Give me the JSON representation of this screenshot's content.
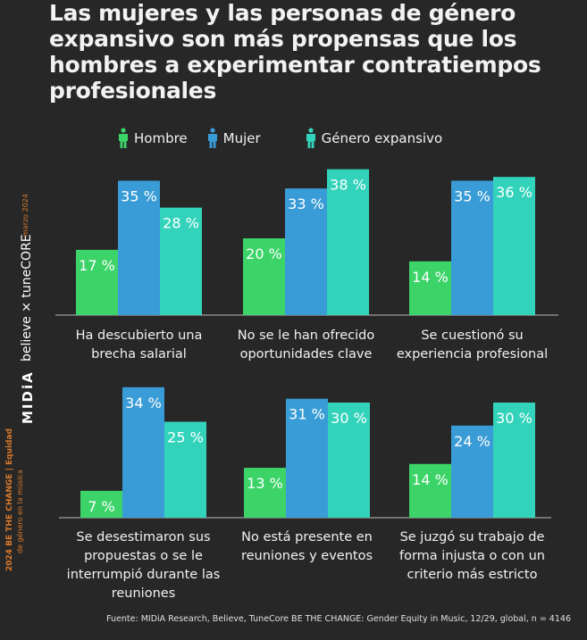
{
  "title": "Las mujeres y las personas de género expansivo son más propensas que los hombres a experimentar contratiempos profesionales",
  "legend": [
    {
      "label": "Hombre",
      "color": "#3cd468",
      "icon": "person-icon"
    },
    {
      "label": "Mujer",
      "color": "#3a9cd6",
      "icon": "person-icon"
    },
    {
      "label": "Género expansivo",
      "color": "#33d3bb",
      "icon": "person-icon"
    }
  ],
  "side": {
    "brand_midia": "MIDiA",
    "brand_partners": "believe × tuneCORE",
    "date": "marzo 2024",
    "report_line1": "2024 BE THE CHANGE | Equidad",
    "report_line2": "de género en la música"
  },
  "source": "Fuente: MIDiA Research, Believe, TuneCore BE THE CHANGE: Gender Equity in Music, 12/29, global, n = 4146",
  "chart_data": {
    "type": "bar",
    "title": "Las mujeres y las personas de género expansivo son más propensas que los hombres a experimentar contratiempos profesionales",
    "xlabel": "",
    "ylabel": "",
    "ylim": [
      0,
      40
    ],
    "grid": false,
    "legend_position": "top",
    "value_suffix": " %",
    "series_names": [
      "Hombre",
      "Mujer",
      "Género expansivo"
    ],
    "series_colors": [
      "#3cd468",
      "#3a9cd6",
      "#33d3bb"
    ],
    "categories": [
      "Ha descubierto una brecha salarial",
      "No se le han ofrecido oportunidades clave",
      "Se cuestionó su experiencia profesional",
      "Se desestimaron sus propuestas o se le interrumpió durante las reuniones",
      "No está presente en reuniones y eventos",
      "Se juzgó su trabajo de forma injusta o con un criterio más estricto"
    ],
    "category_lines": [
      [
        "Ha descubierto una",
        "brecha salarial"
      ],
      [
        "No se le han ofrecido",
        "oportunidades clave"
      ],
      [
        "Se cuestionó su",
        "experiencia profesional"
      ],
      [
        "Se desestimaron sus",
        "propuestas o se le",
        "interrumpió durante las",
        "reuniones"
      ],
      [
        "No está presente en",
        "reuniones y eventos"
      ],
      [
        "Se juzgó su trabajo de",
        "forma injusta o con un",
        "criterio más estricto"
      ]
    ],
    "series": [
      {
        "name": "Hombre",
        "values": [
          17,
          20,
          14,
          7,
          13,
          14
        ]
      },
      {
        "name": "Mujer",
        "values": [
          35,
          33,
          35,
          34,
          31,
          24
        ]
      },
      {
        "name": "Género expansivo",
        "values": [
          28,
          38,
          36,
          25,
          30,
          30
        ]
      }
    ]
  }
}
